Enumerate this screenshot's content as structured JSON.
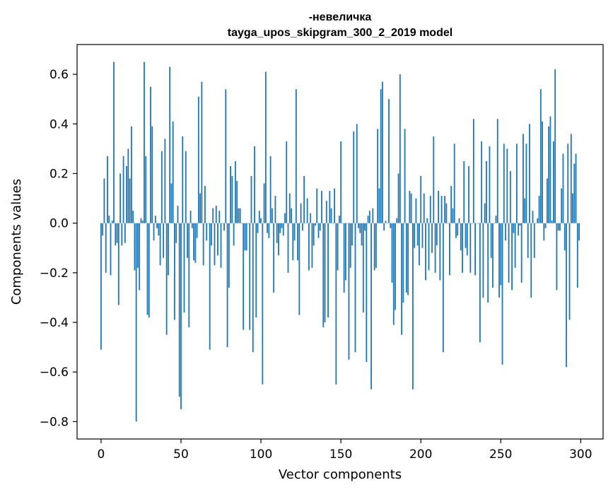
{
  "chart_data": {
    "type": "bar",
    "title": "-невеличка",
    "subtitle": "tayga_upos_skipgram_300_2_2019 model",
    "xlabel": "Vector components",
    "ylabel": "Components values",
    "xlim": [
      -15,
      314
    ],
    "ylim": [
      -0.87,
      0.72
    ],
    "xticks": [
      0,
      50,
      100,
      150,
      200,
      250,
      300
    ],
    "xtick_labels": [
      "0",
      "50",
      "100",
      "150",
      "200",
      "250",
      "300"
    ],
    "yticks": [
      0.6,
      0.4,
      0.2,
      0.0,
      -0.2,
      -0.4,
      -0.6,
      -0.8
    ],
    "ytick_labels": [
      "0.6",
      "0.4",
      "0.2",
      "0.0",
      "−0.2",
      "−0.4",
      "−0.6",
      "−0.8"
    ],
    "grid": false,
    "bar_color": "#1f77b4",
    "x": "0..299 (component index)",
    "values": [
      -0.51,
      -0.05,
      0.18,
      -0.2,
      0.27,
      0.03,
      -0.21,
      0.01,
      0.65,
      -0.09,
      -0.08,
      -0.33,
      0.2,
      -0.09,
      0.27,
      -0.08,
      0.23,
      0.3,
      0.18,
      0.39,
      0.05,
      -0.19,
      -0.8,
      -0.18,
      -0.27,
      0.02,
      0.01,
      0.65,
      0.27,
      -0.37,
      -0.38,
      0.55,
      0.39,
      -0.07,
      0.03,
      -0.02,
      -0.05,
      -0.17,
      0.29,
      -0.14,
      0.34,
      -0.45,
      -0.21,
      0.63,
      0.16,
      0.41,
      -0.39,
      -0.08,
      0.07,
      -0.7,
      -0.75,
      0.35,
      -0.36,
      0.29,
      -0.14,
      -0.42,
      0.05,
      -0.02,
      -0.15,
      -0.16,
      -0.06,
      0.51,
      0.12,
      0.57,
      -0.17,
      0.15,
      -0.07,
      0.0,
      -0.51,
      -0.09,
      0.06,
      -0.17,
      0.07,
      -0.13,
      0.05,
      -0.18,
      0.0,
      -0.03,
      0.54,
      -0.5,
      -0.26,
      0.23,
      0.19,
      -0.09,
      0.25,
      0.17,
      0.06,
      0.06,
      0.0,
      -0.43,
      -0.11,
      -0.11,
      0.0,
      -0.43,
      0.19,
      -0.52,
      0.31,
      -0.38,
      -0.04,
      0.05,
      0.02,
      -0.65,
      0.16,
      0.61,
      -0.04,
      -0.06,
      0.27,
      0.06,
      -0.28,
      0.11,
      -0.08,
      -0.13,
      -0.04,
      -0.02,
      -0.05,
      0.04,
      0.33,
      -0.2,
      0.12,
      0.06,
      -0.15,
      -0.07,
      0.54,
      -0.15,
      -0.37,
      0.08,
      -0.03,
      0.19,
      0.0,
      0.1,
      -0.19,
      0.04,
      -0.18,
      -0.09,
      -0.01,
      0.14,
      -0.06,
      -0.03,
      0.13,
      -0.42,
      -0.4,
      0.09,
      -0.38,
      0.13,
      0.06,
      0.0,
      0.14,
      -0.65,
      -0.19,
      0.03,
      0.33,
      0.0,
      -0.28,
      -0.23,
      0.0,
      -0.55,
      -0.18,
      -0.09,
      0.37,
      -0.52,
      0.4,
      -0.02,
      -0.04,
      -0.09,
      -0.36,
      -0.03,
      -0.56,
      0.03,
      0.05,
      -0.67,
      0.06,
      -0.19,
      -0.18,
      0.38,
      0.14,
      0.54,
      0.57,
      -0.03,
      0.01,
      0.0,
      0.5,
      -0.02,
      -0.24,
      -0.41,
      -0.35,
      0.02,
      0.2,
      0.6,
      -0.45,
      -0.32,
      0.38,
      -0.28,
      -0.29,
      0.13,
      0.12,
      -0.67,
      -0.1,
      0.1,
      -0.09,
      -0.17,
      0.19,
      -0.1,
      0.12,
      -0.23,
      0.02,
      -0.19,
      0.11,
      -0.12,
      0.35,
      -0.2,
      -0.09,
      0.13,
      -0.23,
      0.11,
      -0.52,
      0.11,
      0.08,
      0.0,
      -0.21,
      0.15,
      0.06,
      0.32,
      -0.06,
      -0.05,
      0.02,
      -0.11,
      -0.2,
      0.25,
      -0.1,
      -0.13,
      0.23,
      -0.2,
      0.0,
      0.42,
      -0.21,
      0.0,
      0.0,
      -0.48,
      0.33,
      -0.3,
      0.08,
      0.25,
      -0.32,
      0.31,
      -0.14,
      -0.26,
      0.0,
      0.03,
      0.42,
      -0.3,
      -0.25,
      -0.57,
      0.32,
      -0.07,
      0.3,
      -0.24,
      0.21,
      -0.27,
      -0.04,
      -0.18,
      0.32,
      -0.05,
      -0.01,
      -0.24,
      0.36,
      0.1,
      0.32,
      -0.14,
      0.4,
      -0.3,
      0.05,
      -0.14,
      0.0,
      0.02,
      0.11,
      0.54,
      0.41,
      -0.07,
      -0.02,
      0.18,
      0.39,
      0.43,
      0.01,
      0.33,
      0.62,
      -0.27,
      -0.03,
      -0.03,
      0.14,
      0.28,
      -0.11,
      -0.58,
      0.32,
      -0.39,
      0.36,
      0.12,
      0.24,
      0.28,
      -0.26,
      -0.07
    ]
  }
}
